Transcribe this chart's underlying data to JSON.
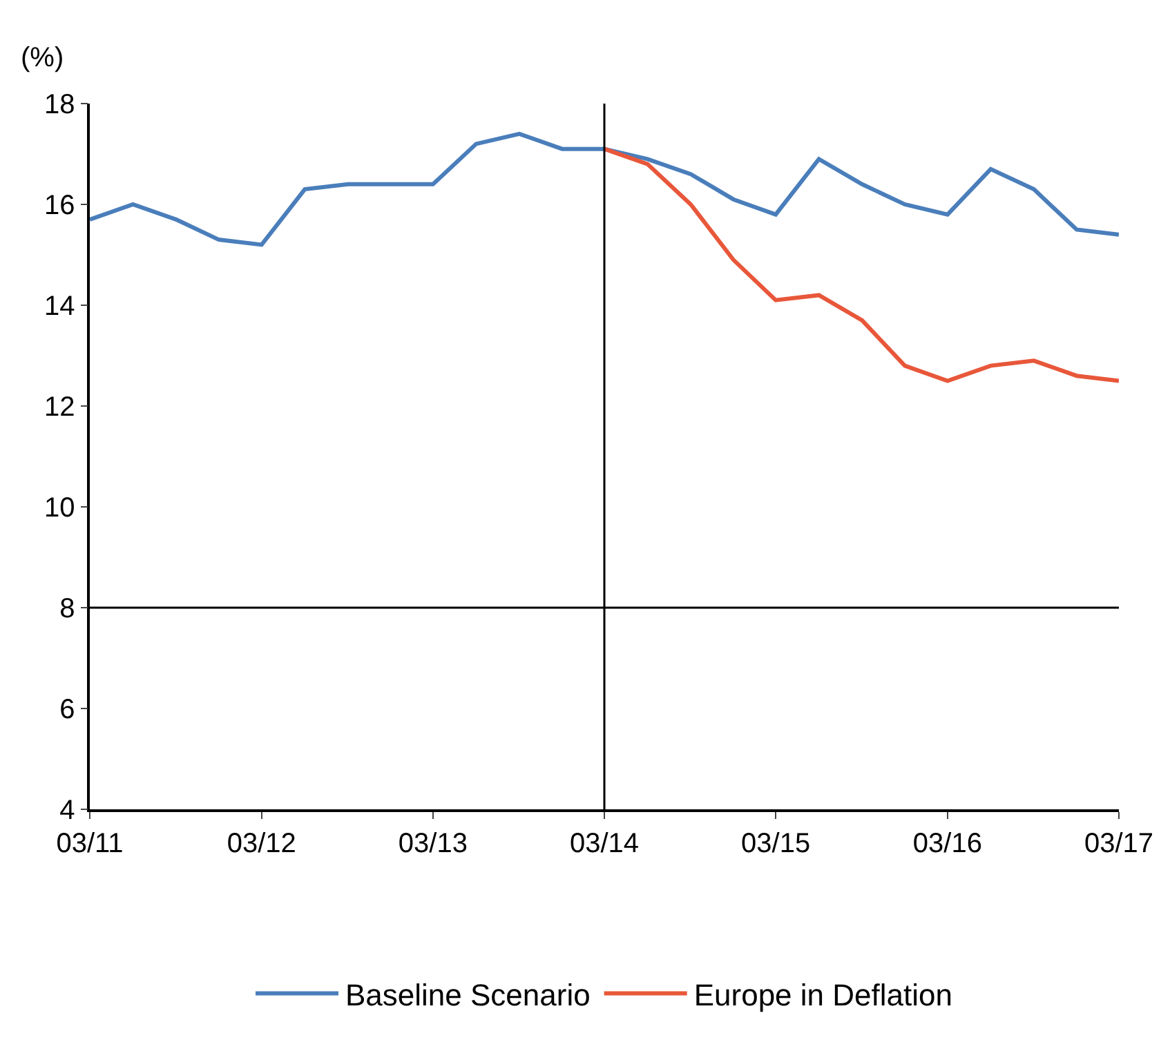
{
  "chart_data": {
    "type": "line",
    "ylabel": "(%)",
    "x": [
      "2011-03",
      "2011-06",
      "2011-09",
      "2011-12",
      "2012-03",
      "2012-06",
      "2012-09",
      "2012-12",
      "2013-03",
      "2013-06",
      "2013-09",
      "2013-12",
      "2014-03",
      "2014-06",
      "2014-09",
      "2014-12",
      "2015-03",
      "2015-06",
      "2015-09",
      "2015-12",
      "2016-03",
      "2016-06",
      "2016-09",
      "2016-12",
      "2017-03"
    ],
    "series": [
      {
        "name": "Baseline Scenario",
        "color": "#4a7ebb",
        "values": [
          15.7,
          16.0,
          15.7,
          15.3,
          15.2,
          16.3,
          16.4,
          16.4,
          16.4,
          17.2,
          17.4,
          17.1,
          17.1,
          16.9,
          16.6,
          16.1,
          15.8,
          16.9,
          16.4,
          16.0,
          15.8,
          16.7,
          16.3,
          15.5,
          15.4
        ]
      },
      {
        "name": "Europe in Deflation",
        "color": "#e8573a",
        "values": [
          null,
          null,
          null,
          null,
          null,
          null,
          null,
          null,
          null,
          null,
          null,
          null,
          17.1,
          16.8,
          16.0,
          14.9,
          14.1,
          14.2,
          13.7,
          12.8,
          12.5,
          12.8,
          12.9,
          12.6,
          12.5
        ]
      }
    ],
    "xlim": [
      "2011-03",
      "2017-03"
    ],
    "xticks": [
      {
        "value": "2011-03",
        "label": "03/11"
      },
      {
        "value": "2012-03",
        "label": "03/12"
      },
      {
        "value": "2013-03",
        "label": "03/13"
      },
      {
        "value": "2014-03",
        "label": "03/14"
      },
      {
        "value": "2015-03",
        "label": "03/15"
      },
      {
        "value": "2016-03",
        "label": "03/16"
      },
      {
        "value": "2017-03",
        "label": "03/17"
      }
    ],
    "ylim": [
      4,
      18
    ],
    "yticks": [
      4,
      6,
      8,
      10,
      12,
      14,
      16,
      18
    ],
    "ref_lines": [
      {
        "axis": "y",
        "value": 8,
        "color": "#000000"
      },
      {
        "axis": "x",
        "value": "2014-03",
        "color": "#000000"
      }
    ],
    "legend": "bottom",
    "marker": "none",
    "line_style": "solid"
  }
}
